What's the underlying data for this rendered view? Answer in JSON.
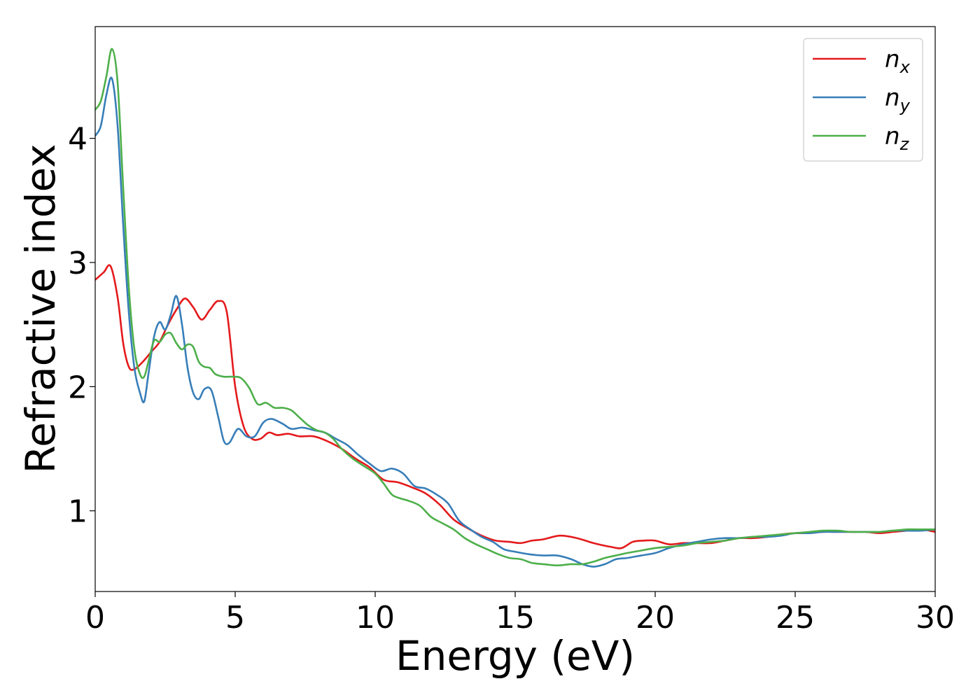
{
  "chart_data": {
    "type": "line",
    "xlabel": "Energy (eV)",
    "ylabel": "Refractive index",
    "xlim": [
      0,
      30
    ],
    "ylim": [
      0.35,
      4.9
    ],
    "x_ticks": [
      0,
      5,
      10,
      15,
      20,
      25,
      30
    ],
    "y_ticks": [
      1,
      2,
      3,
      4
    ],
    "grid": false,
    "legend_position": "top-right",
    "series": [
      {
        "name": "n",
        "subscript": "x",
        "color": "#e41a1c",
        "x": [
          0,
          0.3,
          0.55,
          0.8,
          1.0,
          1.2,
          1.4,
          1.7,
          2.0,
          2.3,
          2.6,
          2.9,
          3.2,
          3.5,
          3.8,
          4.1,
          4.4,
          4.7,
          5.0,
          5.3,
          5.6,
          5.9,
          6.2,
          6.5,
          6.9,
          7.3,
          7.8,
          8.3,
          8.8,
          9.3,
          9.8,
          10.3,
          10.8,
          11.3,
          11.8,
          12.3,
          12.8,
          13.3,
          13.8,
          14.3,
          14.8,
          15.2,
          15.6,
          16.0,
          16.6,
          17.2,
          17.8,
          18.4,
          18.8,
          19.2,
          19.6,
          20.0,
          20.5,
          21.0,
          21.5,
          22.0,
          22.5,
          23.0,
          23.5,
          24.0,
          24.5,
          25.0,
          25.5,
          26.0,
          26.5,
          27.0,
          27.5,
          28.0,
          28.5,
          29.0,
          29.5,
          30.0
        ],
        "values": [
          2.86,
          2.92,
          2.97,
          2.72,
          2.35,
          2.16,
          2.14,
          2.2,
          2.28,
          2.36,
          2.5,
          2.62,
          2.71,
          2.64,
          2.54,
          2.62,
          2.69,
          2.6,
          2.0,
          1.68,
          1.58,
          1.58,
          1.63,
          1.61,
          1.62,
          1.6,
          1.6,
          1.56,
          1.5,
          1.42,
          1.35,
          1.25,
          1.23,
          1.19,
          1.14,
          1.05,
          0.93,
          0.86,
          0.8,
          0.76,
          0.75,
          0.74,
          0.76,
          0.77,
          0.8,
          0.78,
          0.74,
          0.71,
          0.7,
          0.75,
          0.76,
          0.76,
          0.73,
          0.74,
          0.74,
          0.74,
          0.76,
          0.78,
          0.78,
          0.79,
          0.81,
          0.82,
          0.82,
          0.83,
          0.83,
          0.83,
          0.83,
          0.82,
          0.83,
          0.84,
          0.85,
          0.83
        ]
      },
      {
        "name": "n",
        "subscript": "y",
        "color": "#377eb8",
        "x": [
          0,
          0.2,
          0.4,
          0.6,
          0.8,
          1.0,
          1.2,
          1.4,
          1.6,
          1.75,
          1.9,
          2.1,
          2.3,
          2.5,
          2.7,
          2.9,
          3.1,
          3.3,
          3.5,
          3.7,
          3.9,
          4.15,
          4.4,
          4.6,
          4.8,
          5.1,
          5.4,
          5.7,
          6.0,
          6.3,
          6.7,
          7.0,
          7.4,
          7.8,
          8.2,
          8.6,
          9.0,
          9.4,
          9.8,
          10.2,
          10.6,
          11.0,
          11.4,
          11.8,
          12.2,
          12.6,
          13.0,
          13.4,
          13.8,
          14.2,
          14.6,
          15.0,
          15.5,
          16.0,
          16.5,
          17.0,
          17.4,
          17.8,
          18.2,
          18.6,
          19.0,
          19.5,
          20.0,
          20.5,
          21.0,
          21.5,
          22.0,
          22.5,
          23.0,
          23.5,
          24.0,
          24.5,
          25.0,
          25.5,
          26.0,
          26.5,
          27.0,
          27.5,
          28.0,
          28.5,
          29.0,
          29.5,
          30.0
        ],
        "values": [
          4.02,
          4.1,
          4.35,
          4.48,
          4.1,
          3.3,
          2.6,
          2.15,
          1.95,
          1.88,
          2.1,
          2.4,
          2.52,
          2.46,
          2.58,
          2.73,
          2.5,
          2.15,
          1.95,
          1.9,
          1.98,
          1.97,
          1.75,
          1.56,
          1.55,
          1.66,
          1.6,
          1.6,
          1.71,
          1.74,
          1.7,
          1.66,
          1.67,
          1.65,
          1.63,
          1.58,
          1.53,
          1.45,
          1.38,
          1.32,
          1.34,
          1.3,
          1.2,
          1.18,
          1.13,
          1.06,
          0.92,
          0.85,
          0.79,
          0.75,
          0.69,
          0.67,
          0.65,
          0.64,
          0.64,
          0.61,
          0.57,
          0.55,
          0.57,
          0.61,
          0.62,
          0.64,
          0.66,
          0.7,
          0.73,
          0.75,
          0.77,
          0.78,
          0.78,
          0.79,
          0.79,
          0.8,
          0.82,
          0.82,
          0.83,
          0.83,
          0.83,
          0.83,
          0.83,
          0.84,
          0.84,
          0.84,
          0.85
        ]
      },
      {
        "name": "n",
        "subscript": "z",
        "color": "#4daf4a",
        "x": [
          0,
          0.2,
          0.4,
          0.6,
          0.8,
          1.0,
          1.2,
          1.4,
          1.6,
          1.75,
          1.9,
          2.1,
          2.3,
          2.5,
          2.7,
          2.9,
          3.1,
          3.3,
          3.5,
          3.7,
          3.9,
          4.1,
          4.3,
          4.6,
          4.9,
          5.2,
          5.5,
          5.8,
          6.1,
          6.4,
          6.7,
          7.0,
          7.3,
          7.6,
          7.9,
          8.2,
          8.5,
          8.8,
          9.2,
          9.6,
          10.0,
          10.3,
          10.6,
          10.9,
          11.2,
          11.6,
          12.0,
          12.4,
          12.8,
          13.2,
          13.6,
          14.0,
          14.4,
          14.8,
          15.2,
          15.6,
          16.0,
          16.5,
          17.0,
          17.4,
          17.8,
          18.2,
          18.6,
          19.0,
          19.5,
          20.0,
          20.5,
          21.0,
          21.5,
          22.0,
          22.5,
          23.0,
          23.5,
          24.0,
          24.5,
          25.0,
          25.5,
          26.0,
          26.5,
          27.0,
          27.5,
          28.0,
          28.5,
          29.0,
          29.5,
          30.0
        ],
        "values": [
          4.23,
          4.3,
          4.5,
          4.72,
          4.45,
          3.6,
          2.8,
          2.3,
          2.1,
          2.08,
          2.2,
          2.37,
          2.36,
          2.42,
          2.43,
          2.35,
          2.3,
          2.34,
          2.32,
          2.2,
          2.16,
          2.15,
          2.1,
          2.08,
          2.08,
          2.07,
          1.99,
          1.86,
          1.87,
          1.83,
          1.83,
          1.81,
          1.75,
          1.69,
          1.65,
          1.63,
          1.58,
          1.5,
          1.42,
          1.36,
          1.3,
          1.22,
          1.13,
          1.1,
          1.08,
          1.04,
          0.95,
          0.9,
          0.85,
          0.78,
          0.73,
          0.69,
          0.65,
          0.62,
          0.61,
          0.58,
          0.57,
          0.56,
          0.57,
          0.57,
          0.59,
          0.62,
          0.64,
          0.66,
          0.68,
          0.7,
          0.71,
          0.72,
          0.74,
          0.75,
          0.76,
          0.78,
          0.79,
          0.8,
          0.81,
          0.82,
          0.83,
          0.84,
          0.84,
          0.83,
          0.83,
          0.83,
          0.84,
          0.85,
          0.85,
          0.85
        ]
      }
    ]
  }
}
